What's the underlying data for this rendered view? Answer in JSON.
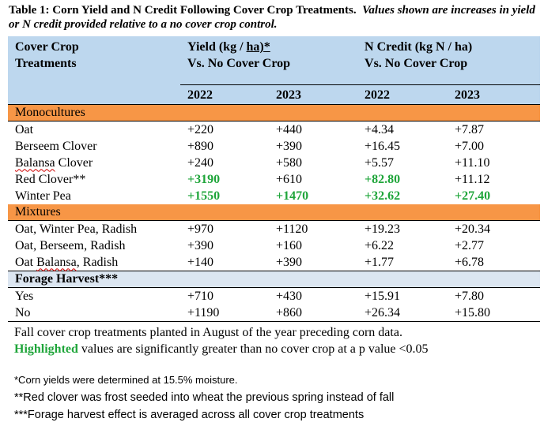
{
  "caption": {
    "title": "Table 1: Corn Yield and N Credit Following Cover Crop Treatments.",
    "subtitle": "Values shown are increases in yield or N credit provided relative to a no cover crop control."
  },
  "header": {
    "col1_line1": "Cover Crop",
    "col1_line2": "Treatments",
    "yield_line1_pre": "Yield (kg / ",
    "yield_line1_unit": "ha)*",
    "yield_line2": "Vs. No Cover Crop",
    "n_line1": "N Credit (kg N / ha)",
    "n_line2": "Vs. No Cover Crop",
    "years": [
      "2022",
      "2023",
      "2022",
      "2023"
    ]
  },
  "sections": [
    {
      "label": "Monocultures",
      "rows": [
        {
          "name": "Oat",
          "values": [
            "+220",
            "+440",
            "+4.34",
            "+7.87"
          ],
          "sig": [
            false,
            false,
            false,
            false
          ]
        },
        {
          "name": "Berseem Clover",
          "values": [
            "+890",
            "+390",
            "+16.45",
            "+7.00"
          ],
          "sig": [
            false,
            false,
            false,
            false
          ]
        },
        {
          "name_a": "Balansa",
          "name_b": " Clover",
          "values": [
            "+240",
            "+580",
            "+5.57",
            "+11.10"
          ],
          "sig": [
            false,
            false,
            false,
            false
          ]
        },
        {
          "name": "Red Clover**",
          "values": [
            "+3190",
            "+610",
            "+82.80",
            "+11.12"
          ],
          "sig": [
            true,
            false,
            true,
            false
          ]
        },
        {
          "name": "Winter Pea",
          "values": [
            "+1550",
            "+1470",
            "+32.62",
            "+27.40"
          ],
          "sig": [
            true,
            true,
            true,
            true
          ]
        }
      ]
    },
    {
      "label": "Mixtures",
      "rows": [
        {
          "name": "Oat, Winter Pea, Radish",
          "values": [
            "+970",
            "+1120",
            "+19.23",
            "+20.34"
          ],
          "sig": [
            false,
            false,
            false,
            false
          ]
        },
        {
          "name": "Oat, Berseem, Radish",
          "values": [
            "+390",
            "+160",
            "+6.22",
            "+2.77"
          ],
          "sig": [
            false,
            false,
            false,
            false
          ]
        },
        {
          "name_a": "Oat ",
          "name_b": "Balansa",
          "name_c": ", Radish",
          "values": [
            "+140",
            "+390",
            "+1.77",
            "+6.78"
          ],
          "sig": [
            false,
            false,
            false,
            false
          ]
        }
      ]
    },
    {
      "label": "Forage Harvest***",
      "rows": [
        {
          "name": "Yes",
          "values": [
            "+710",
            "+430",
            "+15.91",
            "+7.80"
          ],
          "sig": [
            false,
            false,
            false,
            false
          ]
        },
        {
          "name": "No",
          "values": [
            "+1190",
            "+860",
            "+26.34",
            "+15.80"
          ],
          "sig": [
            false,
            false,
            false,
            false
          ]
        }
      ]
    }
  ],
  "notes": {
    "planting": "Fall cover crop treatments planted in August of the year preceding corn data.",
    "highlight_word": "Highlighted",
    "highlight_rest": " values are significantly greater than no cover crop at a p value <0.05"
  },
  "footnotes": [
    "*Corn yields were determined at 15.5% moisture.",
    "**Red clover was frost seeded into wheat the previous spring instead of fall",
    "***Forage harvest effect is averaged across all cover crop treatments"
  ],
  "colors": {
    "header_bg": "#bdd7ee",
    "monoculture_bg": "#f79646",
    "forage_bg": "#dce6f1",
    "significant_text": "#1fa53a"
  }
}
